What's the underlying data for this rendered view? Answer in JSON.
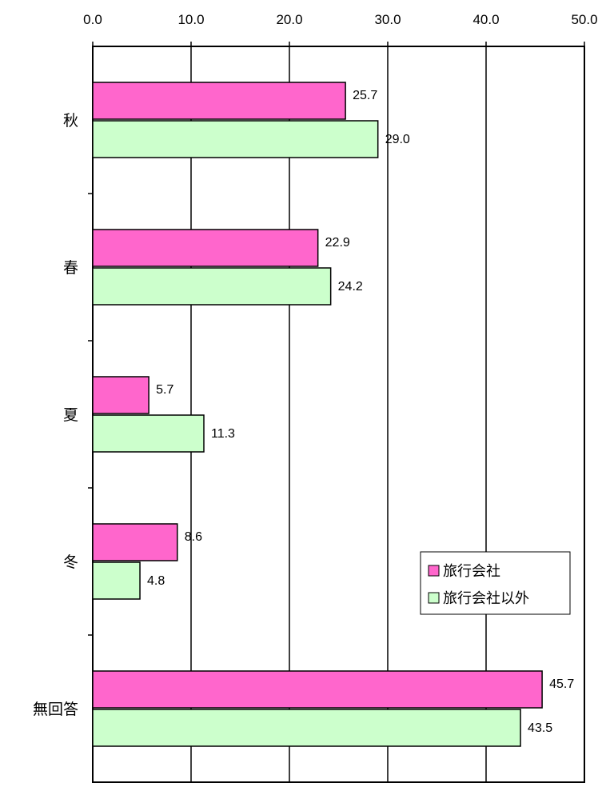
{
  "chart_data": {
    "type": "bar",
    "orientation": "horizontal",
    "title": "",
    "xlabel": "",
    "ylabel": "",
    "xlim": [
      0,
      50
    ],
    "x_ticks": [
      "0.0",
      "10.0",
      "20.0",
      "30.0",
      "40.0",
      "50.0"
    ],
    "x_axis_position": "top",
    "grid": true,
    "categories": [
      "秋",
      "春",
      "夏",
      "冬",
      "無回答"
    ],
    "series": [
      {
        "name": "旅行会社",
        "color": "#ff66cc",
        "values": [
          25.7,
          22.9,
          5.7,
          8.6,
          45.7
        ],
        "labels": [
          "25.7",
          "22.9",
          "5.7",
          "8.6",
          "45.7"
        ]
      },
      {
        "name": "旅行会社以外",
        "color": "#ccffcc",
        "values": [
          29.0,
          24.2,
          11.3,
          4.8,
          43.5
        ],
        "labels": [
          "29.0",
          "24.2",
          "11.3",
          "4.8",
          "43.5"
        ]
      }
    ],
    "legend": {
      "position": "right"
    }
  }
}
